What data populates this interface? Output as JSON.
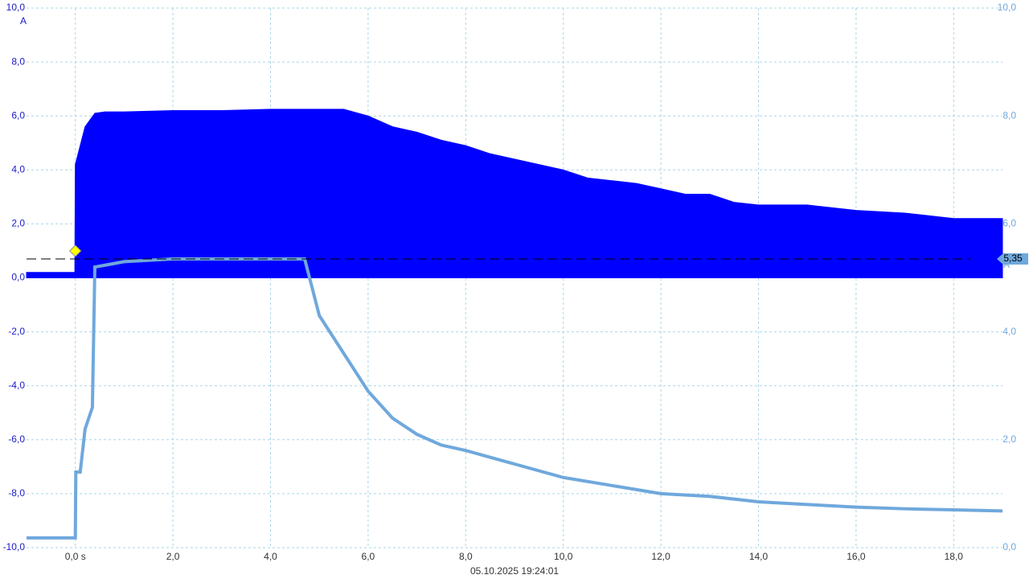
{
  "chart_data": {
    "type": "line",
    "xlabel": "05.10.2025 19:24:01",
    "ylabel": "A",
    "y2label": "A",
    "xlim": [
      -1,
      19
    ],
    "ylim": [
      -10,
      10
    ],
    "y2lim": [
      0,
      10
    ],
    "xticks": [
      {
        "value": 0,
        "label": "0,0 s"
      },
      {
        "value": 2,
        "label": "2,0"
      },
      {
        "value": 4,
        "label": "4,0"
      },
      {
        "value": 6,
        "label": "6,0"
      },
      {
        "value": 8,
        "label": "8,0"
      },
      {
        "value": 10,
        "label": "10,0"
      },
      {
        "value": 12,
        "label": "12,0"
      },
      {
        "value": 14,
        "label": "14,0"
      },
      {
        "value": 16,
        "label": "16,0"
      },
      {
        "value": 18,
        "label": "18,0"
      }
    ],
    "yticks": [
      {
        "value": -10,
        "label": "-10,0"
      },
      {
        "value": -8,
        "label": "-8,0"
      },
      {
        "value": -6,
        "label": "-6,0"
      },
      {
        "value": -4,
        "label": "-4,0"
      },
      {
        "value": -2,
        "label": "-2,0"
      },
      {
        "value": 0,
        "label": "0,0"
      },
      {
        "value": 2,
        "label": "2,0"
      },
      {
        "value": 4,
        "label": "4,0"
      },
      {
        "value": 6,
        "label": "6,0"
      },
      {
        "value": 8,
        "label": "8,0"
      },
      {
        "value": 10,
        "label": "10,0"
      }
    ],
    "y2ticks": [
      {
        "value": 0,
        "label": "0,0"
      },
      {
        "value": 2,
        "label": "2,0"
      },
      {
        "value": 4,
        "label": "4,0"
      },
      {
        "value": 6,
        "label": "6,0"
      },
      {
        "value": 8,
        "label": "8,0"
      },
      {
        "value": 10,
        "label": "10,0"
      }
    ],
    "grid": true,
    "reference": {
      "value": 5.35,
      "label": "5,35",
      "axis": "y2"
    },
    "trigger_marker": {
      "x": 0,
      "y": 1
    },
    "series": [
      {
        "color": "#0000ff",
        "axis": "y",
        "fill": true,
        "x": [
          -1,
          -0.01,
          0,
          0.2,
          0.4,
          0.6,
          1,
          2,
          3,
          4,
          5,
          5.5,
          6,
          6.5,
          7,
          7.5,
          8,
          8.5,
          9,
          9.5,
          10,
          10.5,
          11,
          11.5,
          12,
          12.5,
          13,
          13.5,
          14,
          15,
          16,
          17,
          18,
          19
        ],
        "values": [
          0.2,
          0.2,
          4.2,
          5.6,
          6.1,
          6.15,
          6.15,
          6.2,
          6.2,
          6.25,
          6.25,
          6.25,
          6.0,
          5.6,
          5.4,
          5.1,
          4.9,
          4.6,
          4.4,
          4.2,
          4.0,
          3.7,
          3.6,
          3.5,
          3.3,
          3.1,
          3.1,
          2.8,
          2.7,
          2.7,
          2.5,
          2.4,
          2.2,
          2.2
        ]
      },
      {
        "color": "#6fa8dc",
        "axis": "y2",
        "fill": false,
        "x": [
          -1,
          0,
          0.01,
          0.1,
          0.2,
          0.35,
          0.4,
          1,
          2,
          4.7,
          5,
          5.5,
          6,
          6.5,
          7,
          7.5,
          8,
          9,
          10,
          11,
          12,
          13,
          14,
          15,
          16,
          17,
          18,
          19
        ],
        "values": [
          0.18,
          0.18,
          1.4,
          1.4,
          2.2,
          2.6,
          5.2,
          5.3,
          5.35,
          5.35,
          4.3,
          3.6,
          2.9,
          2.4,
          2.1,
          1.9,
          1.8,
          1.55,
          1.3,
          1.15,
          1.0,
          0.95,
          0.85,
          0.8,
          0.75,
          0.72,
          0.7,
          0.68
        ]
      }
    ]
  }
}
